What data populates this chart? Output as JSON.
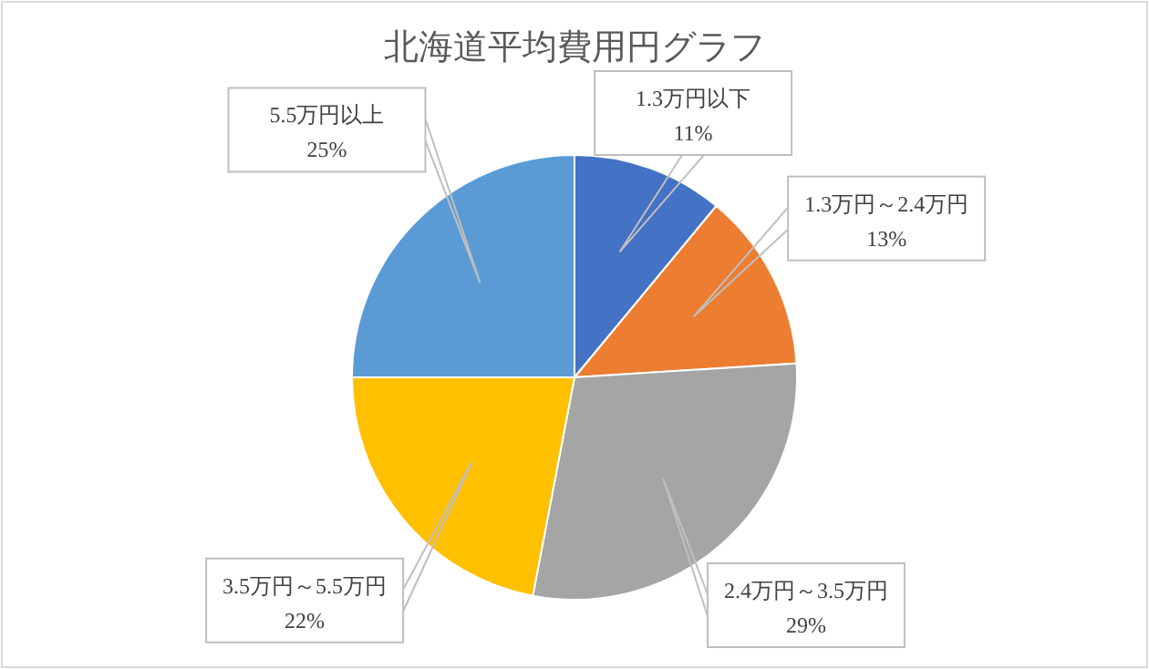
{
  "chart_data": {
    "type": "pie",
    "title": "北海道平均費用円グラフ",
    "categories": [
      "1.3万円以下",
      "1.3万円～2.4万円",
      "2.4万円～3.5万円",
      "3.5万円～5.5万円",
      "5.5万円以上"
    ],
    "values": [
      11,
      13,
      29,
      22,
      25
    ],
    "colors": [
      "#4472c4",
      "#ed7d31",
      "#a5a5a5",
      "#ffc000",
      "#5b9bd5"
    ],
    "value_labels": [
      "11%",
      "13%",
      "29%",
      "22%",
      "25%"
    ]
  }
}
